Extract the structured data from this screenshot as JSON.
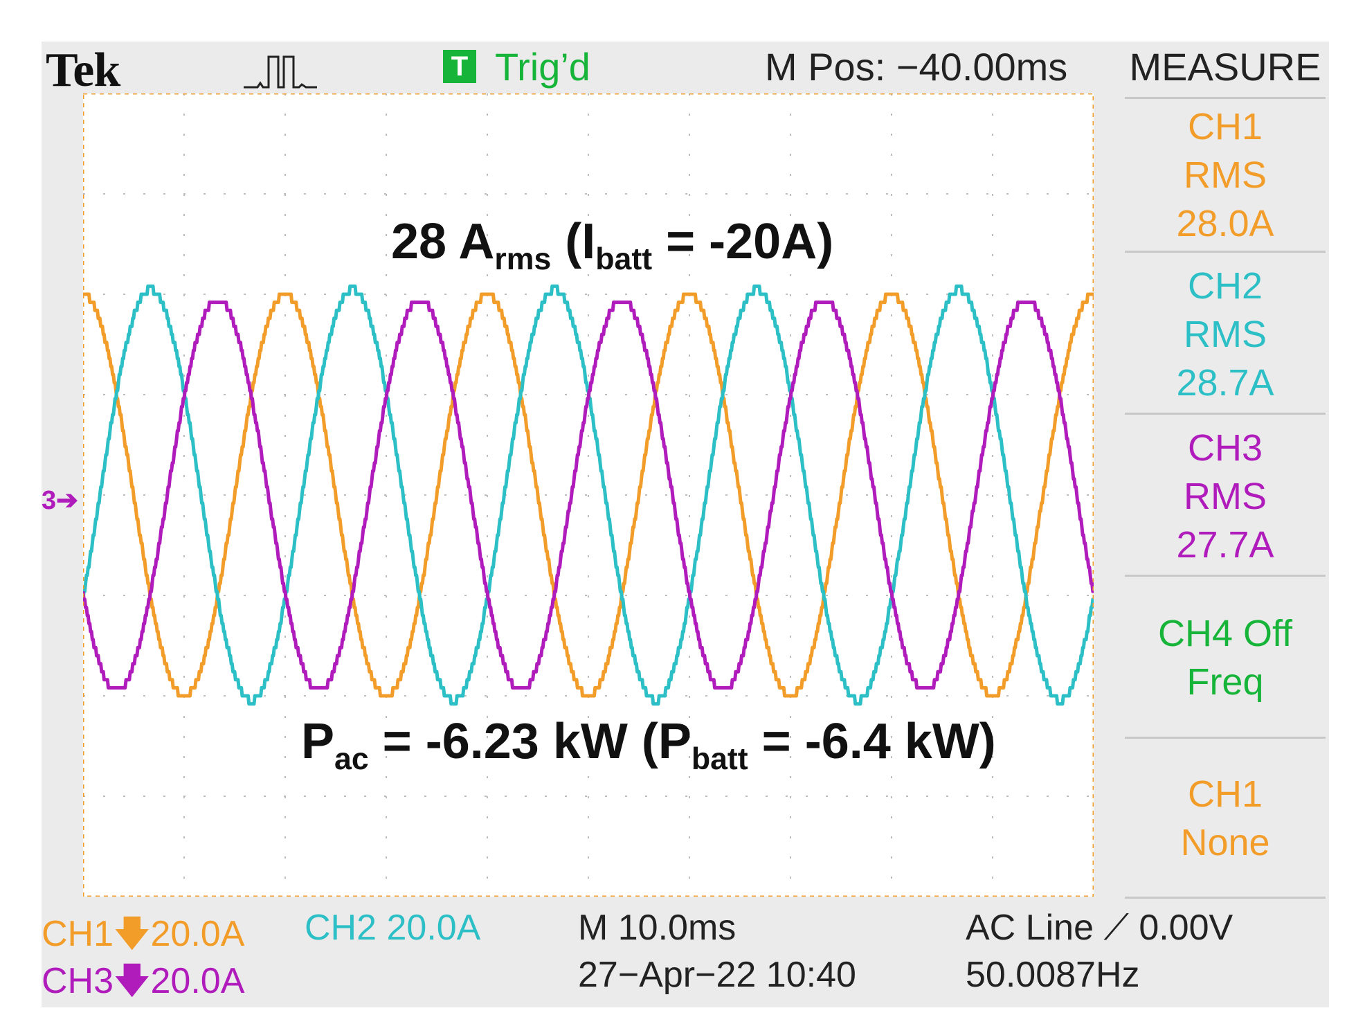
{
  "header": {
    "brand": "Tek",
    "trigger_badge": "T",
    "trigger_status": "Trig’d",
    "m_pos": "M Pos: −40.00ms"
  },
  "measure": {
    "title": "MEASURE",
    "items": [
      {
        "line1": "CH1",
        "line2": "RMS",
        "line3": "28.0A",
        "color": "#f29d2a"
      },
      {
        "line1": "CH2",
        "line2": "RMS",
        "line3": "28.7A",
        "color": "#2cbfc5"
      },
      {
        "line1": "CH3",
        "line2": "RMS",
        "line3": "27.7A",
        "color": "#b01cbc"
      },
      {
        "line1": "CH4 Off",
        "line2": "Freq",
        "line3": "",
        "color": "#17b43a"
      },
      {
        "line1": "CH1",
        "line2": "None",
        "line3": "",
        "color": "#f29d2a"
      }
    ]
  },
  "annotations": {
    "current": {
      "main": "28 A",
      "sub1": "rms",
      "mid1": " (I",
      "sub2": "batt",
      "tail": " = -20A)"
    },
    "power": {
      "main": "P",
      "sub1": "ac",
      "mid1": " = -6.23 kW (P",
      "sub2": "batt",
      "tail": " = -6.4 kW)"
    }
  },
  "ground_marker": "3",
  "footer": {
    "ch1_scale": "CH1",
    "ch1_value": "20.0A",
    "ch2_scale": "CH2  20.0A",
    "ch3_scale": "CH3",
    "ch3_value": "20.0A",
    "timebase": "M 10.0ms",
    "date": "27−Apr−22 10:40",
    "trigger_source": "AC Line",
    "trigger_level": "0.00V",
    "frequency": "50.0087Hz"
  },
  "chart_data": {
    "type": "line",
    "x_unit": "ms",
    "y_unit": "A",
    "time_per_div": 10,
    "amps_per_div": 20,
    "xlim": [
      0,
      100
    ],
    "ylim": [
      -80,
      80
    ],
    "frequency_hz": 50.0087,
    "grid": true,
    "series": [
      {
        "name": "CH1",
        "color": "#f29d2a",
        "rms": 28.0,
        "amplitude": 40,
        "phase_deg": 90
      },
      {
        "name": "CH2",
        "color": "#2cbfc5",
        "rms": 28.7,
        "amplitude": 41,
        "phase_deg": 330
      },
      {
        "name": "CH3",
        "color": "#b01cbc",
        "rms": 27.7,
        "amplitude": 39,
        "phase_deg": 210
      }
    ]
  }
}
